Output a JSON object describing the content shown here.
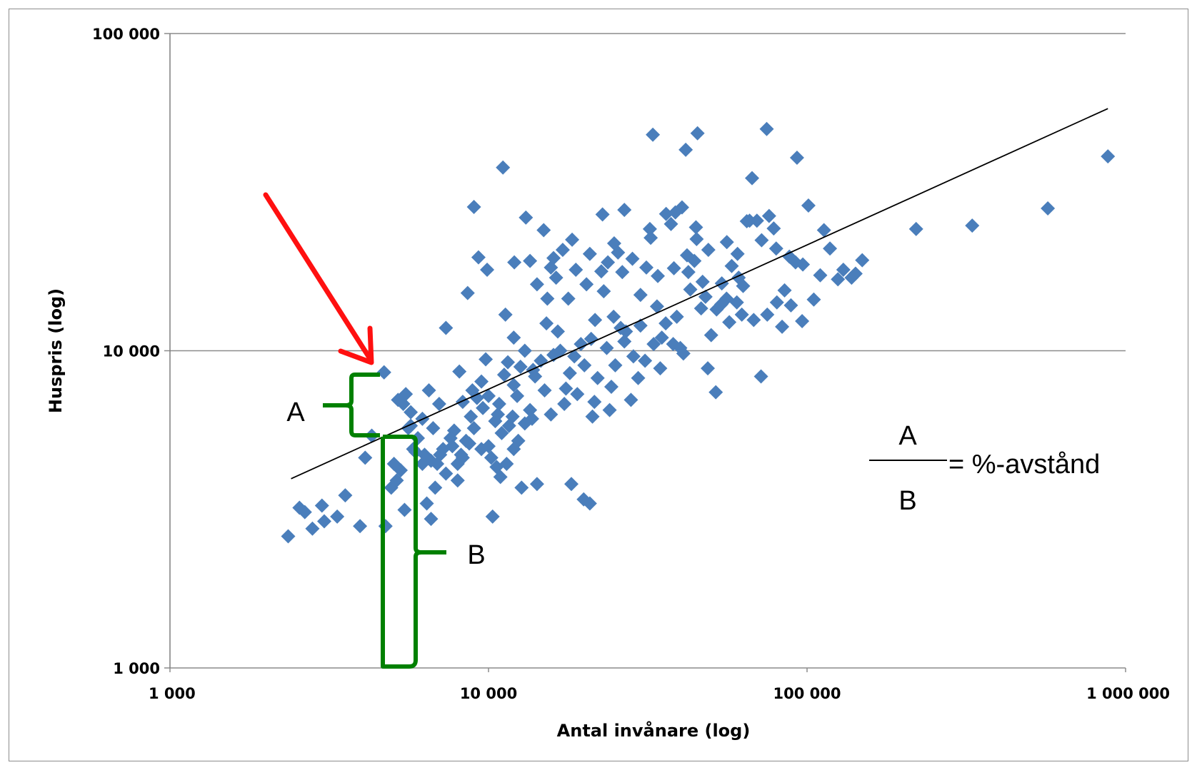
{
  "chart_data": {
    "type": "scatter",
    "xscale": "log",
    "yscale": "log",
    "xlim": [
      1000,
      1000000
    ],
    "ylim": [
      1000,
      100000
    ],
    "xlabel": "Antal invånare (log)",
    "ylabel": "Huspris (log)",
    "x_ticks": [
      {
        "value": 1000,
        "label": "1 000"
      },
      {
        "value": 10000,
        "label": "10 000"
      },
      {
        "value": 100000,
        "label": "100 000"
      },
      {
        "value": 1000000,
        "label": "1 000 000"
      }
    ],
    "y_ticks": [
      {
        "value": 1000,
        "label": "1 000"
      },
      {
        "value": 10000,
        "label": "10 000"
      },
      {
        "value": 100000,
        "label": "100 000"
      }
    ],
    "grid": "horizontal",
    "marker": "diamond",
    "marker_color": "#4a7ebb",
    "trendline": {
      "x": [
        2400,
        880000
      ],
      "y": [
        3950,
        58000
      ],
      "color": "#000000"
    },
    "highlight_point": {
      "x": 4700,
      "y": 8550
    },
    "points": [
      [
        2350,
        2600
      ],
      [
        2550,
        3200
      ],
      [
        2650,
        3100
      ],
      [
        2800,
        2750
      ],
      [
        3000,
        3250
      ],
      [
        3050,
        2900
      ],
      [
        3350,
        3000
      ],
      [
        3550,
        3500
      ],
      [
        3950,
        2800
      ],
      [
        4100,
        4600
      ],
      [
        4300,
        5400
      ],
      [
        4700,
        8550
      ],
      [
        4750,
        2800
      ],
      [
        4950,
        3700
      ],
      [
        5050,
        4400
      ],
      [
        5150,
        3900
      ],
      [
        5300,
        4200
      ],
      [
        5450,
        3150
      ],
      [
        5700,
        5800
      ],
      [
        5900,
        4800
      ],
      [
        6200,
        4400
      ],
      [
        6400,
        3300
      ],
      [
        6600,
        2950
      ],
      [
        6600,
        4500
      ],
      [
        6800,
        3700
      ],
      [
        7050,
        4700
      ],
      [
        7350,
        4100
      ],
      [
        7350,
        11800
      ],
      [
        7700,
        5000
      ],
      [
        8000,
        3900
      ],
      [
        8200,
        4700
      ],
      [
        8300,
        4600
      ],
      [
        8600,
        15200
      ],
      [
        9000,
        28400
      ],
      [
        9300,
        19700
      ],
      [
        9900,
        18000
      ],
      [
        10000,
        5000
      ],
      [
        10300,
        3000
      ],
      [
        10600,
        4300
      ],
      [
        10900,
        4000
      ],
      [
        11100,
        37800
      ],
      [
        11300,
        13000
      ],
      [
        11600,
        5800
      ],
      [
        12050,
        19000
      ],
      [
        12400,
        5200
      ],
      [
        12700,
        3700
      ],
      [
        13100,
        26300
      ],
      [
        13500,
        19200
      ],
      [
        13700,
        6100
      ],
      [
        14200,
        3800
      ],
      [
        14900,
        24000
      ],
      [
        15300,
        14600
      ],
      [
        15700,
        18300
      ],
      [
        16000,
        19600
      ],
      [
        16500,
        11500
      ],
      [
        17100,
        20800
      ],
      [
        18200,
        3800
      ],
      [
        18800,
        18000
      ],
      [
        19900,
        3400
      ],
      [
        20800,
        3300
      ],
      [
        21200,
        6200
      ],
      [
        21600,
        12500
      ],
      [
        22800,
        26900
      ],
      [
        23700,
        19000
      ],
      [
        24700,
        12800
      ],
      [
        25500,
        20400
      ],
      [
        26700,
        27800
      ],
      [
        26700,
        10700
      ],
      [
        28500,
        9600
      ],
      [
        31300,
        18300
      ],
      [
        32100,
        24200
      ],
      [
        32800,
        48000
      ],
      [
        33800,
        13800
      ],
      [
        34600,
        8800
      ],
      [
        36100,
        27000
      ],
      [
        37400,
        25100
      ],
      [
        38600,
        27300
      ],
      [
        40000,
        10200
      ],
      [
        40900,
        9800
      ],
      [
        41600,
        43000
      ],
      [
        42400,
        17700
      ],
      [
        44300,
        19200
      ],
      [
        45300,
        48500
      ],
      [
        46500,
        13600
      ],
      [
        48800,
        8800
      ],
      [
        51700,
        7400
      ],
      [
        53800,
        14000
      ],
      [
        55900,
        14600
      ],
      [
        58000,
        18500
      ],
      [
        60200,
        14200
      ],
      [
        62400,
        13000
      ],
      [
        64700,
        25600
      ],
      [
        67200,
        35000
      ],
      [
        69600,
        25700
      ],
      [
        71700,
        8300
      ],
      [
        74700,
        50000
      ],
      [
        78600,
        24300
      ],
      [
        80400,
        14200
      ],
      [
        83500,
        11900
      ],
      [
        89000,
        13900
      ],
      [
        93000,
        40600
      ],
      [
        96500,
        12400
      ],
      [
        101000,
        28700
      ],
      [
        113000,
        24000
      ],
      [
        125000,
        16800
      ],
      [
        138000,
        17000
      ],
      [
        149000,
        19300
      ],
      [
        220000,
        24200
      ],
      [
        330000,
        24800
      ],
      [
        570000,
        28100
      ],
      [
        880000,
        41000
      ],
      [
        28000,
        7000
      ],
      [
        30000,
        12000
      ],
      [
        20000,
        9000
      ],
      [
        12000,
        11000
      ],
      [
        15000,
        7500
      ],
      [
        18000,
        8500
      ],
      [
        9500,
        8000
      ],
      [
        8800,
        6200
      ],
      [
        10800,
        6800
      ],
      [
        11500,
        9200
      ],
      [
        13000,
        10000
      ],
      [
        14000,
        8300
      ],
      [
        16000,
        9700
      ],
      [
        17500,
        7600
      ],
      [
        19500,
        10500
      ],
      [
        22000,
        8200
      ],
      [
        24000,
        6500
      ],
      [
        25000,
        9000
      ],
      [
        27000,
        11500
      ],
      [
        33000,
        10500
      ],
      [
        36000,
        12200
      ],
      [
        38000,
        10500
      ],
      [
        42000,
        20000
      ],
      [
        47000,
        16500
      ],
      [
        52000,
        13500
      ],
      [
        61000,
        17000
      ],
      [
        68000,
        12500
      ],
      [
        75000,
        13000
      ],
      [
        85000,
        15500
      ],
      [
        92000,
        19000
      ],
      [
        105000,
        14500
      ],
      [
        118000,
        21000
      ],
      [
        130000,
        18000
      ],
      [
        142000,
        17500
      ],
      [
        10000,
        7200
      ],
      [
        10500,
        6000
      ],
      [
        11000,
        5500
      ],
      [
        12000,
        7800
      ],
      [
        13500,
        6500
      ],
      [
        9000,
        5700
      ],
      [
        8500,
        5200
      ],
      [
        7800,
        5600
      ],
      [
        7000,
        6800
      ],
      [
        6500,
        7500
      ],
      [
        6200,
        6100
      ],
      [
        6000,
        5300
      ],
      [
        5800,
        4900
      ],
      [
        5600,
        5700
      ],
      [
        5400,
        6800
      ],
      [
        5200,
        7000
      ],
      [
        8100,
        8600
      ],
      [
        9800,
        9400
      ],
      [
        11200,
        8400
      ],
      [
        12600,
        8900
      ],
      [
        14600,
        9300
      ],
      [
        16800,
        10000
      ],
      [
        18600,
        9600
      ],
      [
        21000,
        10900
      ],
      [
        23500,
        10200
      ],
      [
        26000,
        11800
      ],
      [
        29500,
        8200
      ],
      [
        31000,
        9300
      ],
      [
        35000,
        11000
      ],
      [
        39000,
        12800
      ],
      [
        43000,
        15600
      ],
      [
        48000,
        14800
      ],
      [
        50000,
        11200
      ],
      [
        54000,
        16300
      ],
      [
        57000,
        12300
      ],
      [
        63000,
        16000
      ],
      [
        72000,
        22300
      ],
      [
        80000,
        21000
      ],
      [
        88000,
        19800
      ],
      [
        97000,
        18700
      ],
      [
        110000,
        17300
      ],
      [
        15200,
        12200
      ],
      [
        17800,
        14600
      ],
      [
        20300,
        16200
      ],
      [
        23000,
        15400
      ],
      [
        26300,
        17700
      ],
      [
        30000,
        15000
      ],
      [
        34000,
        17200
      ],
      [
        38200,
        18200
      ],
      [
        45000,
        22500
      ],
      [
        49000,
        20800
      ],
      [
        56000,
        22000
      ],
      [
        60500,
        20200
      ],
      [
        66000,
        25700
      ],
      [
        76000,
        26600
      ],
      [
        14200,
        16200
      ],
      [
        16300,
        17000
      ],
      [
        18300,
        22400
      ],
      [
        20800,
        20200
      ],
      [
        22600,
        17800
      ],
      [
        24800,
        21800
      ],
      [
        28300,
        19500
      ],
      [
        32300,
        22700
      ],
      [
        40500,
        28300
      ],
      [
        44800,
        24500
      ],
      [
        13800,
        8700
      ],
      [
        12300,
        7200
      ],
      [
        11900,
        6200
      ],
      [
        10700,
        6300
      ],
      [
        9600,
        6600
      ],
      [
        9200,
        7100
      ],
      [
        8900,
        7500
      ],
      [
        8300,
        6900
      ],
      [
        7600,
        5300
      ],
      [
        7200,
        4900
      ],
      [
        6900,
        4400
      ],
      [
        6700,
        5700
      ],
      [
        6300,
        4700
      ],
      [
        5700,
        6400
      ],
      [
        5500,
        7300
      ],
      [
        15700,
        6300
      ],
      [
        17300,
        6800
      ],
      [
        19000,
        7300
      ],
      [
        21500,
        6900
      ],
      [
        24300,
        7700
      ],
      [
        13000,
        5900
      ],
      [
        12000,
        4900
      ],
      [
        11400,
        4400
      ],
      [
        10200,
        4600
      ],
      [
        9500,
        4900
      ],
      [
        8700,
        5100
      ],
      [
        8000,
        4400
      ]
    ],
    "annotations": {
      "label_a": "A",
      "label_b": "B",
      "fraction_num": "A",
      "fraction_den": "B",
      "fraction_result": "= %-avstånd",
      "arrow_color": "#ff0000",
      "bracket_color": "#008000"
    }
  }
}
